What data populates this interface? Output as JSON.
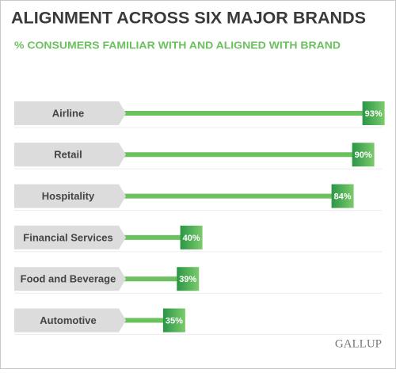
{
  "chart_data": {
    "type": "bar",
    "title": "ALIGNMENT ACROSS SIX MAJOR BRANDS",
    "subtitle": "% CONSUMERS FAMILIAR WITH AND ALIGNED WITH BRAND",
    "categories": [
      "Airline",
      "Retail",
      "Hospitality",
      "Financial Services",
      "Food and Beverage",
      "Automotive"
    ],
    "values": [
      93,
      90,
      84,
      40,
      39,
      35
    ],
    "value_labels": [
      "93%",
      "90%",
      "84%",
      "40%",
      "39%",
      "35%"
    ],
    "color": "#6cc15f",
    "source": "GALLUP"
  }
}
